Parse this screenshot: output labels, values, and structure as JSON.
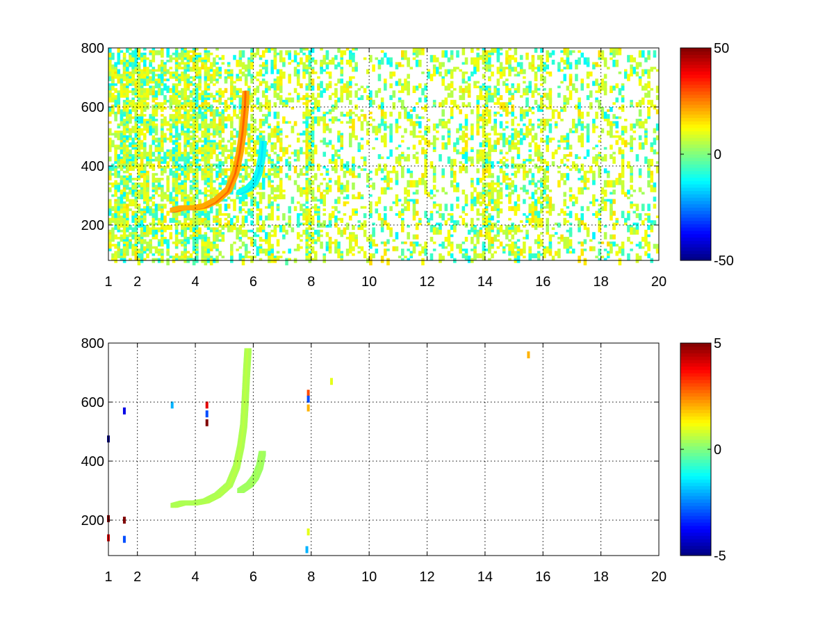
{
  "colormap": "jet",
  "chart_data": [
    {
      "type": "heatmap",
      "title": "",
      "xlabel": "",
      "ylabel": "",
      "xlim": [
        1,
        20
      ],
      "ylim": [
        80,
        800
      ],
      "xticks": [
        1,
        2,
        4,
        6,
        8,
        10,
        12,
        14,
        16,
        18,
        20
      ],
      "yticks": [
        200,
        400,
        600,
        800
      ],
      "x_tick_labels": [
        "1",
        "2",
        "4",
        "6",
        "8",
        "10",
        "12",
        "14",
        "16",
        "18",
        "20"
      ],
      "y_tick_labels": [
        "200",
        "400",
        "600",
        "800"
      ],
      "grid": true,
      "colorbar": {
        "min": -50,
        "max": 50,
        "ticks": [
          50,
          0,
          -50
        ],
        "labels": [
          "50",
          "0",
          "-50"
        ]
      },
      "features": [
        {
          "kind": "curve",
          "value": 28,
          "points": [
            [
              3.3,
              250
            ],
            [
              3.6,
              258
            ],
            [
              4.0,
              258
            ],
            [
              4.4,
              265
            ],
            [
              4.8,
              285
            ],
            [
              5.2,
              320
            ],
            [
              5.45,
              380
            ],
            [
              5.6,
              450
            ],
            [
              5.7,
              520
            ],
            [
              5.78,
              600
            ],
            [
              5.8,
              650
            ]
          ]
        },
        {
          "kind": "curve",
          "value": -15,
          "points": [
            [
              5.6,
              310
            ],
            [
              5.9,
              325
            ],
            [
              6.1,
              345
            ],
            [
              6.25,
              380
            ],
            [
              6.35,
              430
            ],
            [
              6.4,
              480
            ]
          ]
        }
      ],
      "dense_columns": [
        1.5,
        1.6,
        2.0,
        3.3,
        3.6,
        4.0,
        4.4,
        7.9,
        8.0,
        14.0,
        14.1
      ]
    },
    {
      "type": "heatmap",
      "title": "",
      "xlabel": "",
      "ylabel": "",
      "xlim": [
        1,
        20
      ],
      "ylim": [
        80,
        800
      ],
      "xticks": [
        1,
        2,
        4,
        6,
        8,
        10,
        12,
        14,
        16,
        18,
        20
      ],
      "yticks": [
        200,
        400,
        600,
        800
      ],
      "x_tick_labels": [
        "1",
        "2",
        "4",
        "6",
        "8",
        "10",
        "12",
        "14",
        "16",
        "18",
        "20"
      ],
      "y_tick_labels": [
        "200",
        "400",
        "600",
        "800"
      ],
      "grid": true,
      "colorbar": {
        "min": -5,
        "max": 5,
        "ticks": [
          5,
          0,
          -5
        ],
        "labels": [
          "5",
          "0",
          "-5"
        ]
      },
      "features": [
        {
          "kind": "curve",
          "value": 0.6,
          "points": [
            [
              3.3,
              250
            ],
            [
              3.6,
              258
            ],
            [
              4.0,
              258
            ],
            [
              4.4,
              265
            ],
            [
              4.8,
              285
            ],
            [
              5.2,
              320
            ],
            [
              5.45,
              380
            ],
            [
              5.6,
              450
            ],
            [
              5.7,
              520
            ],
            [
              5.75,
              600
            ],
            [
              5.8,
              700
            ],
            [
              5.85,
              780
            ]
          ]
        },
        {
          "kind": "curve",
          "value": 0.4,
          "points": [
            [
              5.6,
              300
            ],
            [
              5.9,
              320
            ],
            [
              6.1,
              345
            ],
            [
              6.25,
              380
            ],
            [
              6.35,
              430
            ]
          ]
        }
      ],
      "points": [
        {
          "x": 1.55,
          "y": 570,
          "value": -4
        },
        {
          "x": 1.55,
          "y": 200,
          "value": 5
        },
        {
          "x": 1.55,
          "y": 135,
          "value": -3
        },
        {
          "x": 1.0,
          "y": 475,
          "value": -5
        },
        {
          "x": 1.0,
          "y": 205,
          "value": 5
        },
        {
          "x": 1.0,
          "y": 140,
          "value": 4
        },
        {
          "x": 3.2,
          "y": 590,
          "value": -2
        },
        {
          "x": 4.4,
          "y": 590,
          "value": 4
        },
        {
          "x": 4.4,
          "y": 560,
          "value": -3
        },
        {
          "x": 4.4,
          "y": 530,
          "value": 5
        },
        {
          "x": 7.9,
          "y": 630,
          "value": 3
        },
        {
          "x": 7.9,
          "y": 610,
          "value": -3
        },
        {
          "x": 7.9,
          "y": 580,
          "value": 2
        },
        {
          "x": 7.9,
          "y": 160,
          "value": 1
        },
        {
          "x": 7.85,
          "y": 100,
          "value": -2
        },
        {
          "x": 8.7,
          "y": 670,
          "value": 1
        },
        {
          "x": 15.5,
          "y": 760,
          "value": 2
        }
      ]
    }
  ]
}
